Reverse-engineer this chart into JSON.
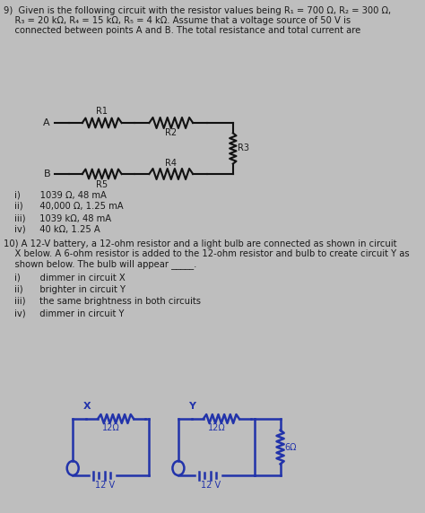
{
  "bg_color": "#bebebe",
  "text_color": "#1a1a1a",
  "circuit_color": "#111111",
  "bottom_circuit_color": "#2233aa",
  "q9_line1": "9)  Given is the following circuit with the resistor values being R₁ = 700 Ω, R₂ = 300 Ω,",
  "q9_line2": "    R₃ = 20 kΩ, R₄ = 15 kΩ, R₅ = 4 kΩ. Assume that a voltage source of 50 V is",
  "q9_line3": "    connected between points A and B. The total resistance and total current are",
  "q9_options": [
    "i)       1039 Ω, 48 mA",
    "ii)      40,000 Ω, 1.25 mA",
    "iii)     1039 kΩ, 48 mA",
    "iv)     40 kΩ, 1.25 A"
  ],
  "q10_line1": "10) A 12-V battery, a 12-ohm resistor and a light bulb are connected as shown in circuit",
  "q10_line2": "    X below. A 6-ohm resistor is added to the 12-ohm resistor and bulb to create circuit Y as",
  "q10_line3": "    shown below. The bulb will appear _____.",
  "q10_options": [
    "i)       dimmer in circuit X",
    "ii)      brighter in circuit Y",
    "iii)     the same brightness in both circuits",
    "iv)     dimmer in circuit Y"
  ]
}
